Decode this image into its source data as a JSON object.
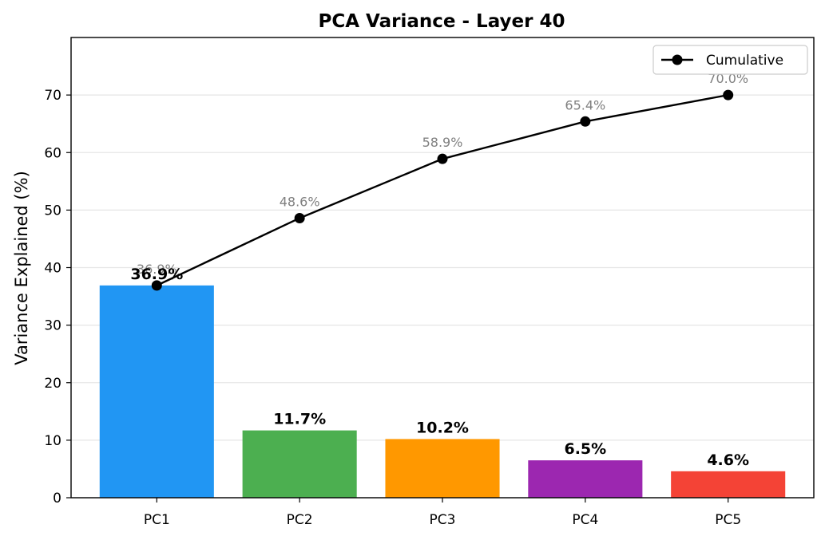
{
  "chart_data": {
    "type": "bar",
    "title": "PCA Variance - Layer 40",
    "xlabel": "",
    "ylabel": "Variance Explained (%)",
    "categories": [
      "PC1",
      "PC2",
      "PC3",
      "PC4",
      "PC5"
    ],
    "ylim": [
      0,
      80
    ],
    "yticks": [
      0,
      10,
      20,
      30,
      40,
      50,
      60,
      70
    ],
    "grid": "y",
    "legend_position": "top-right",
    "series": [
      {
        "kind": "bar",
        "values": [
          36.9,
          11.7,
          10.2,
          6.5,
          4.6
        ],
        "labels": [
          "36.9%",
          "11.7%",
          "10.2%",
          "6.5%",
          "4.6%"
        ],
        "colors": [
          "#2196F3",
          "#4CAF50",
          "#FF9800",
          "#9C27B0",
          "#F44336"
        ]
      },
      {
        "kind": "line",
        "name": "Cumulative",
        "values": [
          36.9,
          48.6,
          58.9,
          65.4,
          70.0
        ],
        "labels": [
          "36.9%",
          "48.6%",
          "58.9%",
          "65.4%",
          "70.0%"
        ],
        "color": "#000000"
      }
    ]
  }
}
